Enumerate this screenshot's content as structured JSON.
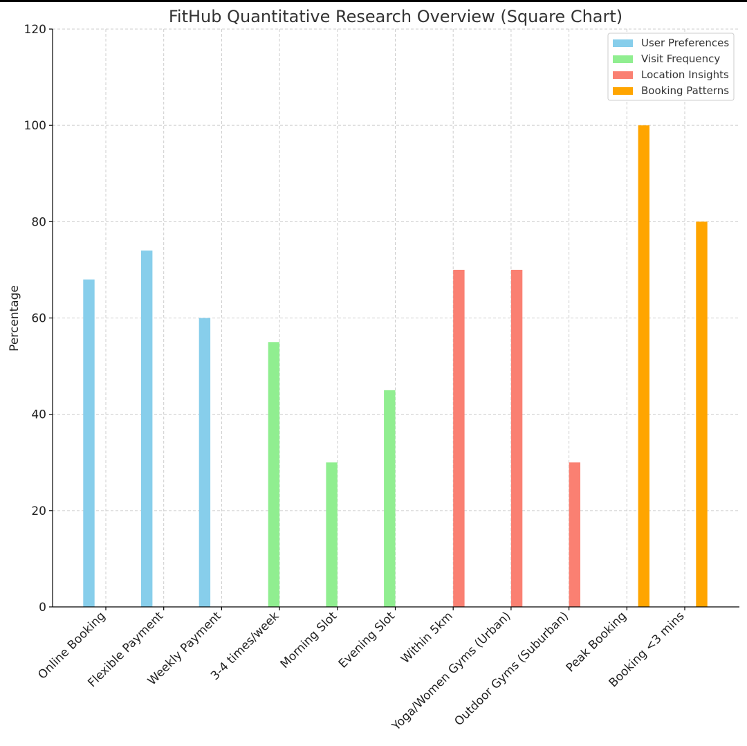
{
  "chart_data": {
    "type": "bar",
    "title": "FitHub Quantitative Research Overview (Square Chart)",
    "xlabel": "",
    "ylabel": "Percentage",
    "ylim": [
      0,
      120
    ],
    "yticks": [
      0,
      20,
      40,
      60,
      80,
      100,
      120
    ],
    "grid": true,
    "legend_position": "top-right",
    "categories": [
      "Online Booking",
      "Flexible Payment",
      "Weekly Payment",
      "3-4 times/week",
      "Morning Slot",
      "Evening Slot",
      "Within 5km",
      "Yoga/Women Gyms (Urban)",
      "Outdoor Gyms (Suburban)",
      "Peak Booking",
      "Booking <3 mins"
    ],
    "series": [
      {
        "name": "User Preferences",
        "color": "#87CEEB",
        "values": [
          68,
          74,
          60,
          null,
          null,
          null,
          null,
          null,
          null,
          null,
          null
        ]
      },
      {
        "name": "Visit Frequency",
        "color": "#90EE90",
        "values": [
          null,
          null,
          null,
          55,
          30,
          45,
          null,
          null,
          null,
          null,
          null
        ]
      },
      {
        "name": "Location Insights",
        "color": "#FA8072",
        "values": [
          null,
          null,
          null,
          null,
          null,
          null,
          70,
          70,
          30,
          null,
          null
        ]
      },
      {
        "name": "Booking Patterns",
        "color": "#FFA500",
        "values": [
          null,
          null,
          null,
          null,
          null,
          null,
          null,
          null,
          null,
          100,
          80
        ]
      }
    ]
  }
}
